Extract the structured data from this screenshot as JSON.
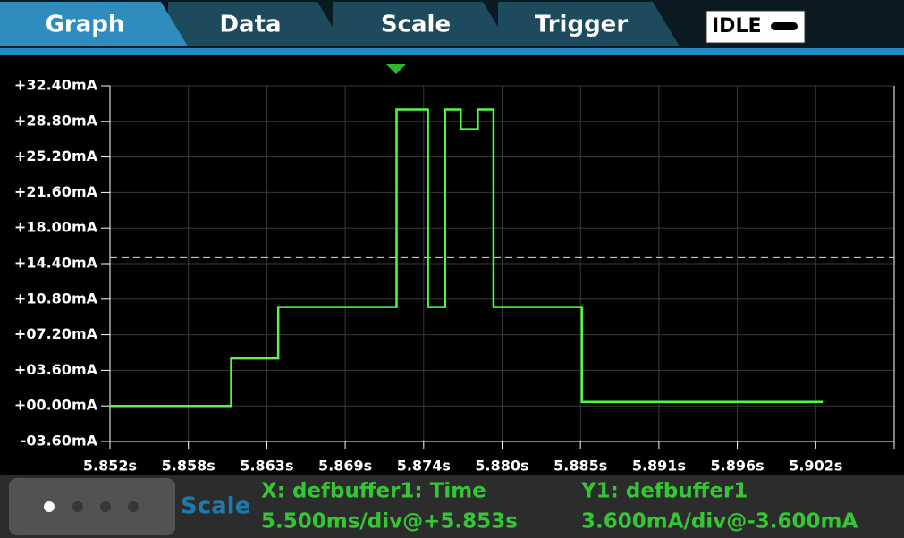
{
  "tabs": [
    "Graph",
    "Data",
    "Scale",
    "Trigger"
  ],
  "status": "IDLE",
  "chart_data": {
    "type": "line",
    "x": [
      5.8525,
      5.861,
      5.861,
      5.8643,
      5.8643,
      5.8726,
      5.8726,
      5.8748,
      5.8748,
      5.876,
      5.876,
      5.8771,
      5.8771,
      5.8783,
      5.8783,
      5.8794,
      5.8794,
      5.8856,
      5.8856,
      5.9025
    ],
    "values": [
      0,
      0,
      4.8,
      4.8,
      10,
      10,
      30,
      30,
      10,
      10,
      30,
      30,
      28,
      28,
      30,
      30,
      10,
      10,
      0.4,
      0.4
    ],
    "color": "#4cff3c",
    "trigger_level": 15,
    "xlim": [
      5.8525,
      5.9075
    ],
    "xticks": [
      {
        "value": 5.8525,
        "label": "5.852s"
      },
      {
        "value": 5.858,
        "label": "5.858s"
      },
      {
        "value": 5.8635,
        "label": "5.863s"
      },
      {
        "value": 5.869,
        "label": "5.869s"
      },
      {
        "value": 5.8745,
        "label": "5.874s"
      },
      {
        "value": 5.88,
        "label": "5.880s"
      },
      {
        "value": 5.8855,
        "label": "5.885s"
      },
      {
        "value": 5.891,
        "label": "5.891s"
      },
      {
        "value": 5.8965,
        "label": "5.896s"
      },
      {
        "value": 5.902,
        "label": "5.902s"
      }
    ],
    "ylim": [
      -3.6,
      32.4
    ],
    "yticks": [
      {
        "value": 32.4,
        "label": "+32.40mA"
      },
      {
        "value": 28.8,
        "label": "+28.80mA"
      },
      {
        "value": 25.2,
        "label": "+25.20mA"
      },
      {
        "value": 21.6,
        "label": "+21.60mA"
      },
      {
        "value": 18,
        "label": "+18.00mA"
      },
      {
        "value": 14.4,
        "label": "+14.40mA"
      },
      {
        "value": 10.8,
        "label": "+10.80mA"
      },
      {
        "value": 7.2,
        "label": "+07.20mA"
      },
      {
        "value": 3.6,
        "label": "+03.60mA"
      },
      {
        "value": 0,
        "label": "+00.00mA"
      },
      {
        "value": -3.6,
        "label": "-03.60mA"
      }
    ],
    "grid": true
  },
  "footer": {
    "title": "Scale",
    "x_label": "X: defbuffer1: Time",
    "x_scale": "5.500ms/div@+5.853s",
    "y_label": "Y1: defbuffer1",
    "y_scale": "3.600mA/div@-3.600mA"
  }
}
